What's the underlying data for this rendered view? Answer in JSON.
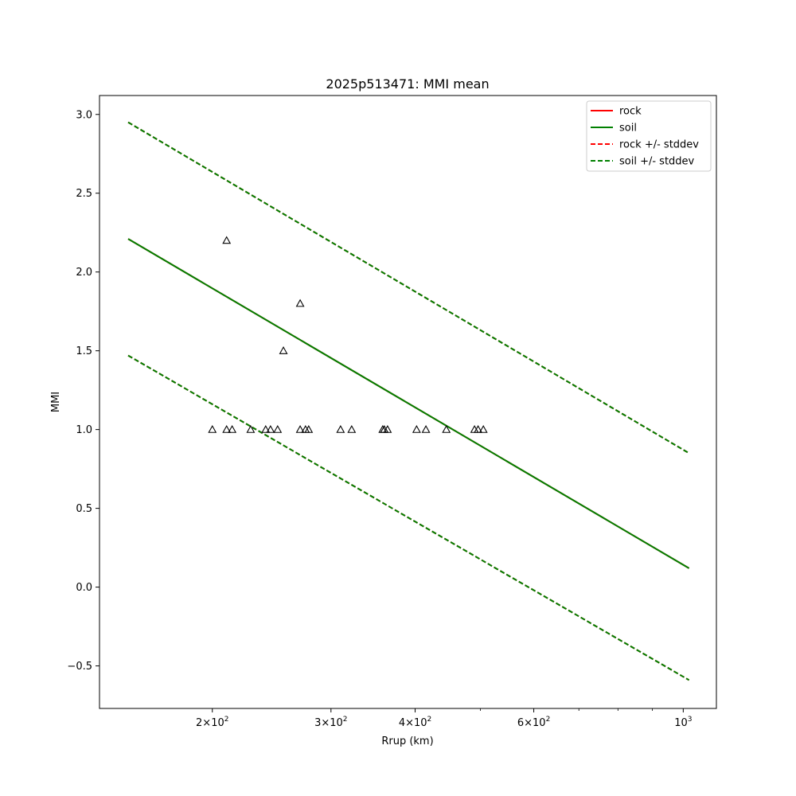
{
  "chart_data": {
    "type": "line",
    "title": "2025p513471: MMI mean",
    "xlabel": "Rrup (km)",
    "ylabel": "MMI",
    "x_scale": "log",
    "xlim": [
      136,
      1120
    ],
    "ylim": [
      -0.77,
      3.12
    ],
    "grid": false,
    "legend_position": "top-right",
    "x_ticks": [
      {
        "value": 200,
        "mantissa": "2",
        "base": "10",
        "exp": "2"
      },
      {
        "value": 300,
        "mantissa": "3",
        "base": "10",
        "exp": "2"
      },
      {
        "value": 400,
        "mantissa": "4",
        "base": "10",
        "exp": "2"
      },
      {
        "value": 600,
        "mantissa": "6",
        "base": "10",
        "exp": "2"
      },
      {
        "value": 1000,
        "mantissa": "",
        "base": "10",
        "exp": "3"
      }
    ],
    "x_minor_ticks": [
      500,
      700,
      800,
      900
    ],
    "y_ticks": [
      {
        "value": -0.5,
        "label": "−0.5"
      },
      {
        "value": 0.0,
        "label": "0.0"
      },
      {
        "value": 0.5,
        "label": "0.5"
      },
      {
        "value": 1.0,
        "label": "1.0"
      },
      {
        "value": 1.5,
        "label": "1.5"
      },
      {
        "value": 2.0,
        "label": "2.0"
      },
      {
        "value": 2.5,
        "label": "2.5"
      },
      {
        "value": 3.0,
        "label": "3.0"
      }
    ],
    "series": [
      {
        "name": "rock",
        "style": "solid",
        "color": "#ff0000",
        "x": [
          150,
          1020
        ],
        "y": [
          2.21,
          0.12
        ]
      },
      {
        "name": "soil",
        "style": "solid",
        "color": "#008000",
        "x": [
          150,
          1020
        ],
        "y": [
          2.21,
          0.12
        ]
      },
      {
        "name": "rock +/- stddev",
        "style": "dashed",
        "color": "#ff0000",
        "x": [
          150,
          1020
        ],
        "y": [
          2.95,
          0.85
        ],
        "y2": [
          1.47,
          -0.59
        ]
      },
      {
        "name": "soil +/- stddev",
        "style": "dashed",
        "color": "#008000",
        "x": [
          150,
          1020
        ],
        "y": [
          2.95,
          0.85
        ],
        "y2": [
          1.47,
          -0.59
        ]
      }
    ],
    "observations": {
      "marker": "triangle",
      "color": "#000000",
      "points": [
        {
          "x": 210,
          "y": 2.2
        },
        {
          "x": 270,
          "y": 1.8
        },
        {
          "x": 255,
          "y": 1.5
        },
        {
          "x": 200,
          "y": 1.0
        },
        {
          "x": 210,
          "y": 1.0
        },
        {
          "x": 214,
          "y": 1.0
        },
        {
          "x": 228,
          "y": 1.0
        },
        {
          "x": 240,
          "y": 1.0
        },
        {
          "x": 244,
          "y": 1.0
        },
        {
          "x": 250,
          "y": 1.0
        },
        {
          "x": 270,
          "y": 1.0
        },
        {
          "x": 275,
          "y": 1.0
        },
        {
          "x": 278,
          "y": 1.0
        },
        {
          "x": 310,
          "y": 1.0
        },
        {
          "x": 322,
          "y": 1.0
        },
        {
          "x": 358,
          "y": 1.0
        },
        {
          "x": 360,
          "y": 1.0
        },
        {
          "x": 364,
          "y": 1.0
        },
        {
          "x": 402,
          "y": 1.0
        },
        {
          "x": 415,
          "y": 1.0
        },
        {
          "x": 445,
          "y": 1.0
        },
        {
          "x": 490,
          "y": 1.0
        },
        {
          "x": 496,
          "y": 1.0
        },
        {
          "x": 505,
          "y": 1.0
        }
      ]
    }
  }
}
